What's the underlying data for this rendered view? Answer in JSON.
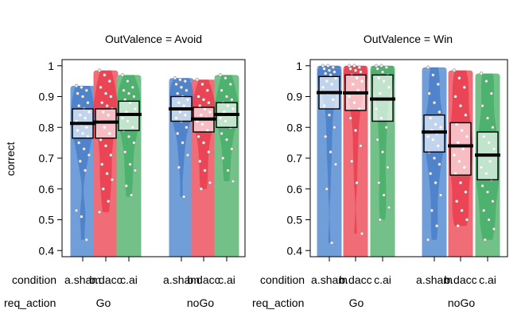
{
  "figure": {
    "ylabel": "correct",
    "row_labels": [
      "condition",
      "req_action"
    ],
    "group_labels": [
      "Go",
      "noGo"
    ],
    "condition_labels": [
      "a.sham",
      "b.dacc",
      "c.ai"
    ],
    "condition_colors": [
      "#6f9ed8",
      "#f06c76",
      "#73c189"
    ],
    "violin_colors": [
      "#3470c4",
      "#e8243a",
      "#2ea655"
    ]
  },
  "chart_data": [
    {
      "type": "box",
      "title": "OutValence = Avoid",
      "ylabel": "correct",
      "ylim": [
        0.38,
        1.02
      ],
      "yticks": [
        0.4,
        0.5,
        0.6,
        0.7,
        0.8,
        0.9,
        1
      ],
      "grid": false,
      "groups": [
        "Go",
        "noGo"
      ],
      "conditions": [
        "a.sham",
        "b.dacc",
        "c.ai"
      ],
      "series": [
        {
          "group": "Go",
          "condition": "a.sham",
          "mean": 0.813,
          "q1": 0.765,
          "q3": 0.86,
          "min": 0.435,
          "max": 0.935,
          "points": [
            0.935,
            0.93,
            0.92,
            0.91,
            0.9,
            0.88,
            0.87,
            0.86,
            0.85,
            0.84,
            0.83,
            0.82,
            0.81,
            0.8,
            0.79,
            0.78,
            0.77,
            0.75,
            0.73,
            0.71,
            0.69,
            0.66,
            0.53,
            0.51,
            0.435
          ]
        },
        {
          "group": "Go",
          "condition": "b.dacc",
          "mean": 0.817,
          "q1": 0.765,
          "q3": 0.86,
          "min": 0.525,
          "max": 0.985,
          "points": [
            0.985,
            0.97,
            0.95,
            0.93,
            0.91,
            0.9,
            0.88,
            0.87,
            0.86,
            0.85,
            0.84,
            0.82,
            0.8,
            0.78,
            0.76,
            0.74,
            0.71,
            0.68,
            0.65,
            0.63,
            0.6,
            0.56,
            0.525
          ]
        },
        {
          "group": "Go",
          "condition": "c.ai",
          "mean": 0.842,
          "q1": 0.79,
          "q3": 0.885,
          "min": 0.575,
          "max": 0.97,
          "points": [
            0.97,
            0.95,
            0.93,
            0.92,
            0.91,
            0.9,
            0.89,
            0.88,
            0.86,
            0.85,
            0.84,
            0.83,
            0.82,
            0.8,
            0.79,
            0.77,
            0.75,
            0.72,
            0.68,
            0.66,
            0.61,
            0.58
          ]
        },
        {
          "group": "noGo",
          "condition": "a.sham",
          "mean": 0.86,
          "q1": 0.82,
          "q3": 0.9,
          "min": 0.575,
          "max": 0.96,
          "points": [
            0.96,
            0.955,
            0.95,
            0.94,
            0.93,
            0.92,
            0.91,
            0.9,
            0.89,
            0.88,
            0.87,
            0.86,
            0.85,
            0.84,
            0.83,
            0.82,
            0.8,
            0.78,
            0.75,
            0.71,
            0.67,
            0.575
          ]
        },
        {
          "group": "noGo",
          "condition": "b.dacc",
          "mean": 0.827,
          "q1": 0.785,
          "q3": 0.865,
          "min": 0.6,
          "max": 0.955,
          "points": [
            0.955,
            0.94,
            0.92,
            0.9,
            0.89,
            0.88,
            0.87,
            0.86,
            0.85,
            0.84,
            0.83,
            0.82,
            0.81,
            0.79,
            0.77,
            0.75,
            0.72,
            0.69,
            0.66,
            0.62,
            0.6
          ]
        },
        {
          "group": "noGo",
          "condition": "c.ai",
          "mean": 0.842,
          "q1": 0.8,
          "q3": 0.88,
          "min": 0.625,
          "max": 0.97,
          "points": [
            0.97,
            0.96,
            0.94,
            0.92,
            0.9,
            0.89,
            0.88,
            0.87,
            0.86,
            0.85,
            0.84,
            0.83,
            0.82,
            0.8,
            0.78,
            0.76,
            0.73,
            0.7,
            0.66,
            0.625
          ]
        }
      ]
    },
    {
      "type": "box",
      "title": "OutValence = Win",
      "ylabel": "",
      "ylim": [
        0.38,
        1.02
      ],
      "yticks": [
        0.4,
        0.5,
        0.6,
        0.7,
        0.8,
        0.9,
        1
      ],
      "grid": false,
      "groups": [
        "Go",
        "noGo"
      ],
      "conditions": [
        "a.sham",
        "b.dacc",
        "c.ai"
      ],
      "series": [
        {
          "group": "Go",
          "condition": "a.sham",
          "mean": 0.913,
          "q1": 0.86,
          "q3": 0.965,
          "min": 0.425,
          "max": 1.0,
          "points": [
            1.0,
            1.0,
            0.995,
            0.99,
            0.985,
            0.98,
            0.975,
            0.97,
            0.96,
            0.95,
            0.94,
            0.93,
            0.91,
            0.89,
            0.87,
            0.84,
            0.8,
            0.77,
            0.72,
            0.68,
            0.6,
            0.425
          ]
        },
        {
          "group": "Go",
          "condition": "b.dacc",
          "mean": 0.912,
          "q1": 0.855,
          "q3": 0.97,
          "min": 0.455,
          "max": 1.0,
          "points": [
            1.0,
            1.0,
            0.995,
            0.99,
            0.985,
            0.98,
            0.97,
            0.96,
            0.95,
            0.94,
            0.92,
            0.9,
            0.88,
            0.86,
            0.83,
            0.79,
            0.74,
            0.69,
            0.62,
            0.455
          ]
        },
        {
          "group": "Go",
          "condition": "c.ai",
          "mean": 0.892,
          "q1": 0.82,
          "q3": 0.97,
          "min": 0.5,
          "max": 1.0,
          "points": [
            1.0,
            1.0,
            0.995,
            0.99,
            0.98,
            0.97,
            0.96,
            0.95,
            0.93,
            0.91,
            0.89,
            0.86,
            0.83,
            0.8,
            0.76,
            0.72,
            0.67,
            0.62,
            0.58,
            0.54,
            0.5
          ]
        },
        {
          "group": "noGo",
          "condition": "a.sham",
          "mean": 0.785,
          "q1": 0.72,
          "q3": 0.84,
          "min": 0.435,
          "max": 0.995,
          "points": [
            0.995,
            0.97,
            0.94,
            0.91,
            0.88,
            0.85,
            0.83,
            0.81,
            0.8,
            0.79,
            0.78,
            0.77,
            0.76,
            0.74,
            0.72,
            0.7,
            0.68,
            0.65,
            0.62,
            0.58,
            0.53,
            0.48,
            0.435
          ]
        },
        {
          "group": "noGo",
          "condition": "b.dacc",
          "mean": 0.74,
          "q1": 0.645,
          "q3": 0.815,
          "min": 0.48,
          "max": 0.985,
          "points": [
            0.985,
            0.96,
            0.93,
            0.9,
            0.87,
            0.84,
            0.81,
            0.79,
            0.77,
            0.75,
            0.73,
            0.71,
            0.69,
            0.67,
            0.65,
            0.62,
            0.59,
            0.56,
            0.53,
            0.5,
            0.48
          ]
        },
        {
          "group": "noGo",
          "condition": "c.ai",
          "mean": 0.71,
          "q1": 0.63,
          "q3": 0.785,
          "min": 0.435,
          "max": 0.975,
          "points": [
            0.975,
            0.95,
            0.91,
            0.87,
            0.83,
            0.8,
            0.77,
            0.75,
            0.73,
            0.71,
            0.69,
            0.67,
            0.65,
            0.63,
            0.61,
            0.59,
            0.56,
            0.53,
            0.5,
            0.47,
            0.435
          ]
        }
      ]
    }
  ]
}
